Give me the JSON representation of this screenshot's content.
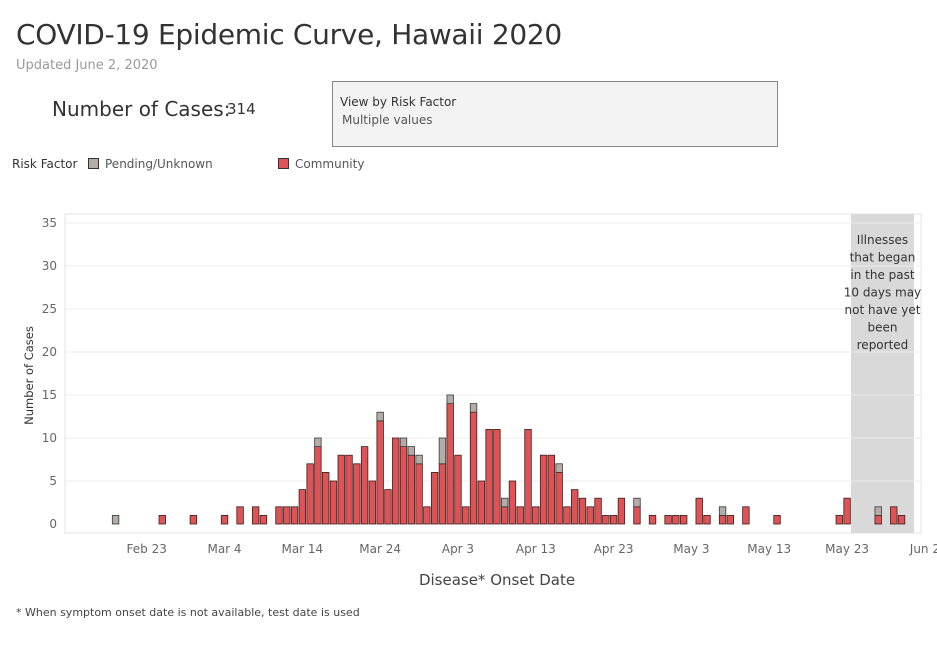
{
  "header": {
    "title": "COVID-19 Epidemic Curve, Hawaii 2020",
    "subtitle": "Updated June 2, 2020"
  },
  "summary": {
    "cases_label": "Number of Cases:",
    "cases_value": "314"
  },
  "filter": {
    "title": "View by Risk Factor",
    "value": "Multiple values"
  },
  "legend": {
    "title": "Risk Factor",
    "items": [
      {
        "label": "Pending/Unknown",
        "color": "#b3aca7"
      },
      {
        "label": "Community",
        "color": "#de5356"
      }
    ]
  },
  "footnote": "* When symptom onset date is not available, test date is used",
  "chart_data": {
    "type": "bar",
    "stacked": true,
    "xlabel": "Disease* Onset Date",
    "ylabel": "Number of Cases",
    "ylim": [
      0,
      35
    ],
    "yticks": [
      0,
      5,
      10,
      15,
      20,
      25,
      30,
      35
    ],
    "x_start": "2020-02-13",
    "x_end": "2020-06-02",
    "xticks": [
      {
        "date": "2020-02-23",
        "label": "Feb 23"
      },
      {
        "date": "2020-03-04",
        "label": "Mar 4"
      },
      {
        "date": "2020-03-14",
        "label": "Mar 14"
      },
      {
        "date": "2020-03-24",
        "label": "Mar 24"
      },
      {
        "date": "2020-04-03",
        "label": "Apr 3"
      },
      {
        "date": "2020-04-13",
        "label": "Apr 13"
      },
      {
        "date": "2020-04-23",
        "label": "Apr 23"
      },
      {
        "date": "2020-05-03",
        "label": "May 3"
      },
      {
        "date": "2020-05-13",
        "label": "May 13"
      },
      {
        "date": "2020-05-23",
        "label": "May 23"
      },
      {
        "date": "2020-06-02",
        "label": "Jun 2"
      }
    ],
    "grid": true,
    "series": [
      {
        "name": "Pending/Unknown",
        "color": "#b3aca7"
      },
      {
        "name": "Community",
        "color": "#de5356"
      }
    ],
    "points": [
      {
        "date": "2020-02-19",
        "community": 0,
        "pending": 1
      },
      {
        "date": "2020-02-25",
        "community": 1,
        "pending": 0
      },
      {
        "date": "2020-02-29",
        "community": 1,
        "pending": 0
      },
      {
        "date": "2020-03-04",
        "community": 1,
        "pending": 0
      },
      {
        "date": "2020-03-06",
        "community": 2,
        "pending": 0
      },
      {
        "date": "2020-03-08",
        "community": 2,
        "pending": 0
      },
      {
        "date": "2020-03-09",
        "community": 1,
        "pending": 0
      },
      {
        "date": "2020-03-11",
        "community": 2,
        "pending": 0
      },
      {
        "date": "2020-03-12",
        "community": 2,
        "pending": 0
      },
      {
        "date": "2020-03-13",
        "community": 2,
        "pending": 0
      },
      {
        "date": "2020-03-14",
        "community": 4,
        "pending": 0
      },
      {
        "date": "2020-03-15",
        "community": 7,
        "pending": 0
      },
      {
        "date": "2020-03-16",
        "community": 9,
        "pending": 1
      },
      {
        "date": "2020-03-17",
        "community": 6,
        "pending": 0
      },
      {
        "date": "2020-03-18",
        "community": 5,
        "pending": 0
      },
      {
        "date": "2020-03-19",
        "community": 8,
        "pending": 0
      },
      {
        "date": "2020-03-20",
        "community": 8,
        "pending": 0
      },
      {
        "date": "2020-03-21",
        "community": 7,
        "pending": 0
      },
      {
        "date": "2020-03-22",
        "community": 9,
        "pending": 0
      },
      {
        "date": "2020-03-23",
        "community": 5,
        "pending": 0
      },
      {
        "date": "2020-03-24",
        "community": 12,
        "pending": 1
      },
      {
        "date": "2020-03-25",
        "community": 4,
        "pending": 0
      },
      {
        "date": "2020-03-26",
        "community": 10,
        "pending": 0
      },
      {
        "date": "2020-03-27",
        "community": 9,
        "pending": 1
      },
      {
        "date": "2020-03-28",
        "community": 8,
        "pending": 1
      },
      {
        "date": "2020-03-29",
        "community": 7,
        "pending": 1
      },
      {
        "date": "2020-03-30",
        "community": 2,
        "pending": 0
      },
      {
        "date": "2020-03-31",
        "community": 6,
        "pending": 0
      },
      {
        "date": "2020-04-01",
        "community": 7,
        "pending": 3
      },
      {
        "date": "2020-04-02",
        "community": 14,
        "pending": 1
      },
      {
        "date": "2020-04-03",
        "community": 8,
        "pending": 0
      },
      {
        "date": "2020-04-04",
        "community": 2,
        "pending": 0
      },
      {
        "date": "2020-04-05",
        "community": 13,
        "pending": 1
      },
      {
        "date": "2020-04-06",
        "community": 5,
        "pending": 0
      },
      {
        "date": "2020-04-07",
        "community": 11,
        "pending": 0
      },
      {
        "date": "2020-04-08",
        "community": 11,
        "pending": 0
      },
      {
        "date": "2020-04-09",
        "community": 2,
        "pending": 1
      },
      {
        "date": "2020-04-10",
        "community": 5,
        "pending": 0
      },
      {
        "date": "2020-04-11",
        "community": 2,
        "pending": 0
      },
      {
        "date": "2020-04-12",
        "community": 11,
        "pending": 0
      },
      {
        "date": "2020-04-13",
        "community": 2,
        "pending": 0
      },
      {
        "date": "2020-04-14",
        "community": 8,
        "pending": 0
      },
      {
        "date": "2020-04-15",
        "community": 8,
        "pending": 0
      },
      {
        "date": "2020-04-16",
        "community": 6,
        "pending": 1
      },
      {
        "date": "2020-04-17",
        "community": 2,
        "pending": 0
      },
      {
        "date": "2020-04-18",
        "community": 4,
        "pending": 0
      },
      {
        "date": "2020-04-19",
        "community": 3,
        "pending": 0
      },
      {
        "date": "2020-04-20",
        "community": 2,
        "pending": 0
      },
      {
        "date": "2020-04-21",
        "community": 3,
        "pending": 0
      },
      {
        "date": "2020-04-22",
        "community": 1,
        "pending": 0
      },
      {
        "date": "2020-04-23",
        "community": 1,
        "pending": 0
      },
      {
        "date": "2020-04-24",
        "community": 3,
        "pending": 0
      },
      {
        "date": "2020-04-26",
        "community": 2,
        "pending": 1
      },
      {
        "date": "2020-04-28",
        "community": 1,
        "pending": 0
      },
      {
        "date": "2020-04-30",
        "community": 1,
        "pending": 0
      },
      {
        "date": "2020-05-01",
        "community": 1,
        "pending": 0
      },
      {
        "date": "2020-05-02",
        "community": 1,
        "pending": 0
      },
      {
        "date": "2020-05-04",
        "community": 3,
        "pending": 0
      },
      {
        "date": "2020-05-05",
        "community": 1,
        "pending": 0
      },
      {
        "date": "2020-05-07",
        "community": 1,
        "pending": 1
      },
      {
        "date": "2020-05-08",
        "community": 1,
        "pending": 0
      },
      {
        "date": "2020-05-10",
        "community": 2,
        "pending": 0
      },
      {
        "date": "2020-05-14",
        "community": 1,
        "pending": 0
      },
      {
        "date": "2020-05-22",
        "community": 1,
        "pending": 0
      },
      {
        "date": "2020-05-23",
        "community": 3,
        "pending": 0
      },
      {
        "date": "2020-05-27",
        "community": 1,
        "pending": 1
      },
      {
        "date": "2020-05-29",
        "community": 2,
        "pending": 0
      },
      {
        "date": "2020-05-30",
        "community": 1,
        "pending": 0
      }
    ],
    "annotation": {
      "text": "Illnesses that began in the past 10 days may not have yet been reported",
      "start_date": "2020-05-24",
      "end_date": "2020-06-02",
      "color": "#d9d9d9"
    }
  }
}
